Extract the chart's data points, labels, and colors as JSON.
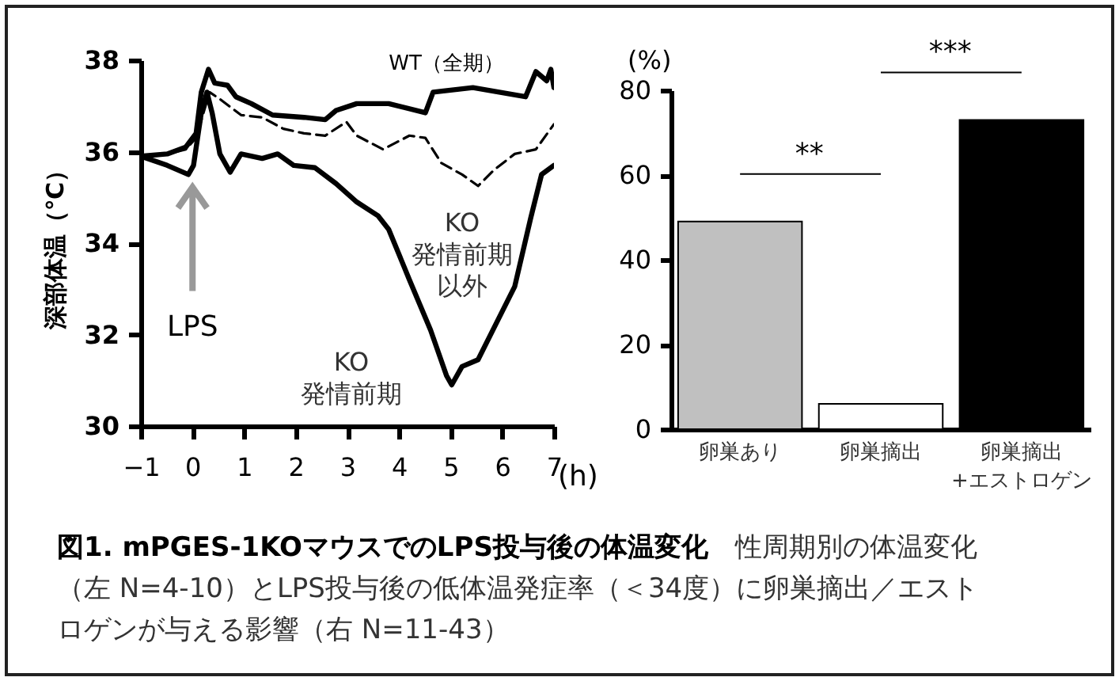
{
  "chart_data": [
    {
      "type": "line",
      "xlabel": "(h)",
      "ylabel": "深部体温（℃）",
      "xlim": [
        -1,
        7
      ],
      "xticks": [
        -1,
        0,
        1,
        2,
        3,
        4,
        5,
        6,
        7
      ],
      "ylim": [
        30,
        38
      ],
      "yticks": [
        30,
        32,
        34,
        36,
        38
      ],
      "series": [
        {
          "color": "#000000",
          "line_style": "solid",
          "x": [
            -1,
            -0.49,
            -0.13,
            0.07,
            0.17,
            0.31,
            0.43,
            0.68,
            0.84,
            1.14,
            1.55,
            2.16,
            2.57,
            2.78,
            3.18,
            3.8,
            4.51,
            4.66,
            5.43,
            6.45,
            6.65,
            6.86,
            6.94,
            7
          ],
          "values": [
            35.9,
            35.95,
            36.1,
            36.4,
            37.3,
            37.8,
            37.5,
            37.45,
            37.2,
            37.05,
            36.8,
            36.75,
            36.7,
            36.9,
            37.05,
            37.05,
            36.85,
            37.3,
            37.4,
            37.2,
            37.75,
            37.55,
            37.8,
            37.4
          ]
        },
        {
          "color": "#000000",
          "line_style": "dashed",
          "x": [
            -1,
            -0.49,
            -0.13,
            0.07,
            0.33,
            0.53,
            0.94,
            1.35,
            1.76,
            2.16,
            2.57,
            2.98,
            3.18,
            3.69,
            4.2,
            4.51,
            4.82,
            5.22,
            5.53,
            5.84,
            6.24,
            6.65,
            7
          ],
          "values": [
            35.9,
            35.95,
            36.05,
            36.3,
            37.3,
            37.15,
            36.8,
            36.75,
            36.5,
            36.4,
            36.35,
            36.65,
            36.35,
            36.05,
            36.35,
            36.3,
            35.75,
            35.5,
            35.25,
            35.6,
            35.95,
            36.05,
            36.6
          ]
        },
        {
          "color": "#000000",
          "line_style": "solid",
          "x": [
            -1,
            -0.49,
            -0.08,
            0.02,
            0.17,
            0.28,
            0.38,
            0.53,
            0.73,
            0.94,
            1.35,
            1.65,
            1.96,
            2.37,
            2.78,
            3.18,
            3.59,
            3.8,
            4.2,
            4.61,
            4.92,
            5.02,
            5.22,
            5.53,
            5.84,
            6.24,
            6.55,
            6.76,
            7
          ],
          "values": [
            35.9,
            35.7,
            35.5,
            35.7,
            36.85,
            37.3,
            36.85,
            35.95,
            35.55,
            35.95,
            35.85,
            35.95,
            35.7,
            35.65,
            35.3,
            34.9,
            34.6,
            34.3,
            33.2,
            32.1,
            31.1,
            30.9,
            31.3,
            31.45,
            32.15,
            33.05,
            34.55,
            35.5,
            35.7
          ]
        }
      ],
      "ref_lines": [
        {
          "axis": "x",
          "value": 0,
          "label": "LPS",
          "color": "#999999"
        }
      ],
      "annotations": [
        "WT（全期）",
        "KO\n発情前期以外",
        "KO\n発情前期"
      ]
    },
    {
      "type": "bar",
      "ylabel": "(%)",
      "categories": [
        "卵巣あり",
        "卵巣摘出",
        "卵巣摘出\n+エストロゲン"
      ],
      "values": [
        49,
        6,
        73
      ],
      "colors": [
        "#c0c0c0",
        "#ffffff",
        "#000000"
      ],
      "ylim": [
        0,
        80
      ],
      "yticks": [
        0,
        20,
        40,
        60,
        80
      ],
      "annotations": [
        "**",
        "***"
      ]
    },
    {
      "type": "other",
      "title": "図1. mPGES-1KOマウスでのLPS投与後の体温変化",
      "subtitle": "性周期別の体温変化（左 N=4-10）とLPS投与後の低体温発症率（＜34度）に卵巣摘出／エストロゲンが与える影響（右 N=11-43）"
    }
  ]
}
